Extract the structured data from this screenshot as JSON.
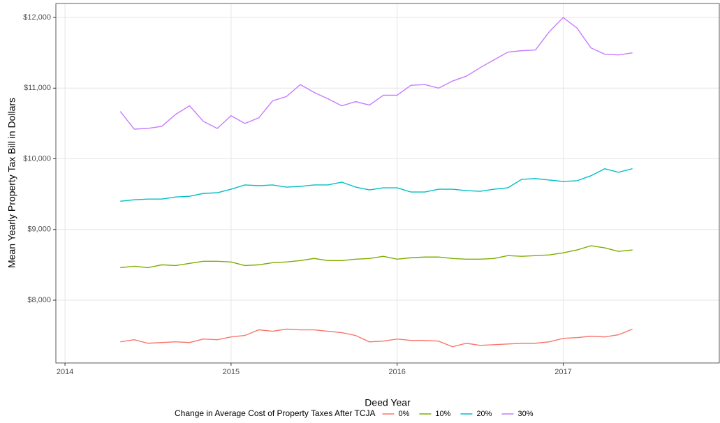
{
  "chart_data": {
    "type": "line",
    "x_label": "Deed Year",
    "y_label": "Mean Yearly Property Tax Bill in Dollars",
    "legend_title": "Change in Average Cost of Property Taxes After TCJA",
    "legend_position": "bottom",
    "grid": true,
    "xlim": [
      2013.945,
      2017.94
    ],
    "ylim": [
      7111,
      12198
    ],
    "xticks": [
      2014,
      2015,
      2016,
      2017
    ],
    "yticks": [
      {
        "value": 8000,
        "label": "$8,000"
      },
      {
        "value": 9000,
        "label": "$9,000"
      },
      {
        "value": 10000,
        "label": "$10,000"
      },
      {
        "value": 11000,
        "label": "$11,000"
      },
      {
        "value": 12000,
        "label": "$12,000"
      }
    ],
    "x": [
      2014.333,
      2014.417,
      2014.5,
      2014.583,
      2014.667,
      2014.75,
      2014.833,
      2014.917,
      2015.0,
      2015.083,
      2015.167,
      2015.25,
      2015.333,
      2015.417,
      2015.5,
      2015.583,
      2015.667,
      2015.75,
      2015.833,
      2015.917,
      2016.0,
      2016.083,
      2016.167,
      2016.25,
      2016.333,
      2016.417,
      2016.5,
      2016.583,
      2016.667,
      2016.75,
      2016.833,
      2016.917,
      2017.0,
      2017.083,
      2017.167,
      2017.25,
      2017.333,
      2017.417
    ],
    "series": [
      {
        "name": "0%",
        "color": "#F8766D",
        "values": [
          7410,
          7440,
          7390,
          7400,
          7410,
          7400,
          7450,
          7440,
          7480,
          7500,
          7580,
          7560,
          7590,
          7580,
          7580,
          7560,
          7540,
          7500,
          7410,
          7420,
          7450,
          7430,
          7430,
          7420,
          7340,
          7390,
          7360,
          7370,
          7380,
          7390,
          7390,
          7410,
          7460,
          7470,
          7490,
          7480,
          7510,
          7590
        ]
      },
      {
        "name": "10%",
        "color": "#7CAE00",
        "values": [
          8460,
          8480,
          8460,
          8500,
          8490,
          8520,
          8550,
          8550,
          8540,
          8490,
          8500,
          8530,
          8540,
          8560,
          8590,
          8560,
          8560,
          8580,
          8590,
          8620,
          8580,
          8600,
          8610,
          8610,
          8590,
          8580,
          8580,
          8590,
          8630,
          8620,
          8630,
          8640,
          8670,
          8710,
          8770,
          8740,
          8690,
          8710
        ]
      },
      {
        "name": "20%",
        "color": "#00BFC4",
        "values": [
          9400,
          9420,
          9430,
          9430,
          9460,
          9470,
          9510,
          9520,
          9570,
          9630,
          9620,
          9630,
          9600,
          9610,
          9630,
          9630,
          9670,
          9600,
          9560,
          9590,
          9590,
          9530,
          9530,
          9570,
          9570,
          9550,
          9540,
          9570,
          9590,
          9710,
          9720,
          9700,
          9680,
          9690,
          9760,
          9860,
          9810,
          9860
        ]
      },
      {
        "name": "30%",
        "color": "#C77CFF",
        "values": [
          10670,
          10420,
          10430,
          10460,
          10630,
          10750,
          10530,
          10430,
          10610,
          10500,
          10580,
          10820,
          10880,
          11050,
          10940,
          10850,
          10750,
          10810,
          10760,
          10900,
          10900,
          11040,
          11050,
          11000,
          11100,
          11170,
          11290,
          11400,
          11510,
          11530,
          11540,
          11800,
          12000,
          11850,
          11570,
          11480,
          11470,
          11500
        ]
      }
    ]
  }
}
